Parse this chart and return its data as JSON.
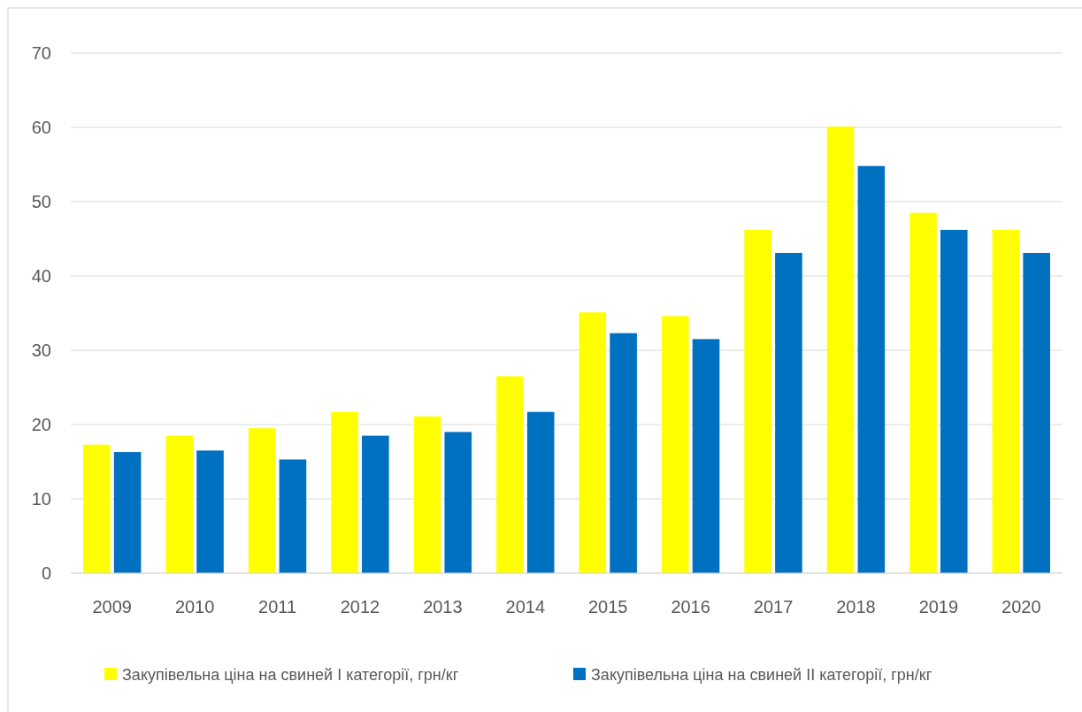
{
  "chart_data": {
    "type": "bar",
    "categories": [
      "2009",
      "2010",
      "2011",
      "2012",
      "2013",
      "2014",
      "2015",
      "2016",
      "2017",
      "2018",
      "2019",
      "2020"
    ],
    "series": [
      {
        "name": "Закупівельна ціна на свиней I категорії, грн/кг",
        "color": "#ffff00",
        "values": [
          17.3,
          18.5,
          19.5,
          21.7,
          21.1,
          26.5,
          35.1,
          34.6,
          46.2,
          60.1,
          48.5,
          46.2
        ]
      },
      {
        "name": "Закупівельна ціна на свиней II категорії, грн/кг",
        "color": "#0070c0",
        "values": [
          16.3,
          16.5,
          15.3,
          18.5,
          19.0,
          21.7,
          32.3,
          31.5,
          43.1,
          54.8,
          46.2,
          43.1
        ]
      }
    ],
    "ylim": [
      0,
      70
    ],
    "yticks": [
      0,
      10,
      20,
      30,
      40,
      50,
      60,
      70
    ],
    "grid": "y",
    "legend": "bottom"
  }
}
